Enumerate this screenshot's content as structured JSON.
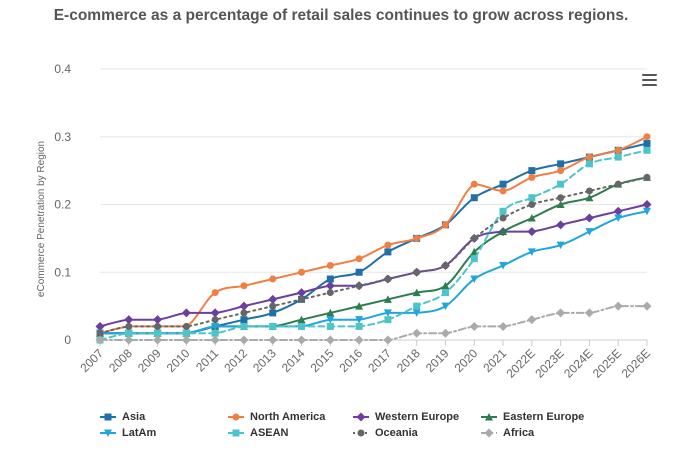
{
  "chart_data": {
    "type": "line",
    "title": "E-commerce as a percentage of retail sales continues to grow across regions.",
    "ylabel": "eCommerce Penetration by Region",
    "xlabel": "",
    "ylim": [
      0,
      0.4
    ],
    "yticks": [
      "0",
      "0.1",
      "0.2",
      "0.3",
      "0.4"
    ],
    "categories": [
      "2007",
      "2008",
      "2009",
      "2010",
      "2011",
      "2012",
      "2013",
      "2014",
      "2015",
      "2016",
      "2017",
      "2018",
      "2019",
      "2020",
      "2021",
      "2022E",
      "2023E",
      "2024E",
      "2025E",
      "2026E"
    ],
    "grid": "horizontal",
    "legend_position": "bottom",
    "series": [
      {
        "name": "Asia",
        "color": "#1f6fa8",
        "dash": "solid",
        "marker": "square",
        "values": [
          0.01,
          0.01,
          0.01,
          0.01,
          0.02,
          0.03,
          0.04,
          0.06,
          0.09,
          0.1,
          0.13,
          0.15,
          0.17,
          0.21,
          0.23,
          0.25,
          0.26,
          0.27,
          0.28,
          0.29
        ]
      },
      {
        "name": "North America",
        "color": "#f07f43",
        "dash": "solid",
        "marker": "circle",
        "values": [
          0.01,
          0.02,
          0.02,
          0.02,
          0.07,
          0.08,
          0.09,
          0.1,
          0.11,
          0.12,
          0.14,
          0.15,
          0.17,
          0.23,
          0.22,
          0.24,
          0.25,
          0.27,
          0.28,
          0.3
        ]
      },
      {
        "name": "Western Europe",
        "color": "#6b3fa0",
        "dash": "solid",
        "marker": "diamond",
        "values": [
          0.02,
          0.03,
          0.03,
          0.04,
          0.04,
          0.05,
          0.06,
          0.07,
          0.08,
          0.08,
          0.09,
          0.1,
          0.11,
          0.15,
          0.16,
          0.16,
          0.17,
          0.18,
          0.19,
          0.2
        ]
      },
      {
        "name": "Eastern Europe",
        "color": "#2e7d4f",
        "dash": "solid",
        "marker": "triangle-up",
        "values": [
          0.01,
          0.01,
          0.01,
          0.01,
          0.02,
          0.02,
          0.02,
          0.03,
          0.04,
          0.05,
          0.06,
          0.07,
          0.08,
          0.13,
          0.16,
          0.18,
          0.2,
          0.21,
          0.23,
          0.24
        ]
      },
      {
        "name": "LatAm",
        "color": "#21a5df",
        "dash": "solid",
        "marker": "triangle-down",
        "values": [
          0.01,
          0.01,
          0.01,
          0.01,
          0.02,
          0.02,
          0.02,
          0.02,
          0.03,
          0.03,
          0.04,
          0.04,
          0.05,
          0.09,
          0.11,
          0.13,
          0.14,
          0.16,
          0.18,
          0.19
        ]
      },
      {
        "name": "ASEAN",
        "color": "#4dc4c9",
        "dash": "dash",
        "marker": "square",
        "values": [
          0.0,
          0.01,
          0.01,
          0.01,
          0.01,
          0.02,
          0.02,
          0.02,
          0.02,
          0.02,
          0.03,
          0.05,
          0.07,
          0.12,
          0.19,
          0.21,
          0.23,
          0.26,
          0.27,
          0.28
        ]
      },
      {
        "name": "Oceania",
        "color": "#666666",
        "dash": "dot",
        "marker": "circle",
        "values": [
          0.01,
          0.02,
          0.02,
          0.02,
          0.03,
          0.04,
          0.05,
          0.06,
          0.07,
          0.08,
          0.09,
          0.1,
          0.11,
          0.15,
          0.18,
          0.2,
          0.21,
          0.22,
          0.23,
          0.24
        ]
      },
      {
        "name": "Africa",
        "color": "#aaaaaa",
        "dash": "dashdot",
        "marker": "diamond",
        "values": [
          0.0,
          0.0,
          0.0,
          0.0,
          0.0,
          0.0,
          0.0,
          0.0,
          0.0,
          0.0,
          0.0,
          0.01,
          0.01,
          0.02,
          0.02,
          0.03,
          0.04,
          0.04,
          0.05,
          0.05
        ]
      }
    ]
  },
  "toolbar": {
    "menu_icon": "hamburger-menu-icon"
  }
}
